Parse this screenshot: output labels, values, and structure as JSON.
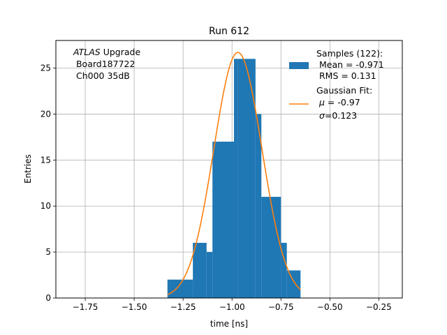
{
  "chart_data": {
    "type": "bar",
    "title": "Run 612",
    "xlabel": "time [ns]",
    "ylabel": "Entries",
    "xlim": [
      -1.9,
      -0.13
    ],
    "ylim": [
      0,
      28
    ],
    "grid": true,
    "xticks": [
      {
        "value": -1.75,
        "label": "−1.75"
      },
      {
        "value": -1.5,
        "label": "−1.50"
      },
      {
        "value": -1.25,
        "label": "−1.25"
      },
      {
        "value": -1.0,
        "label": "−1.00"
      },
      {
        "value": -0.75,
        "label": "−0.75"
      },
      {
        "value": -0.5,
        "label": "−0.50"
      },
      {
        "value": -0.25,
        "label": "−0.25"
      }
    ],
    "yticks": [
      0,
      5,
      10,
      15,
      20,
      25
    ],
    "histogram": {
      "color": "#1f77b4",
      "bin_edges": [
        -1.33,
        -1.2,
        -1.13,
        -1.1,
        -0.99,
        -0.97,
        -0.88,
        -0.85,
        -0.75,
        -0.72,
        -0.65
      ],
      "counts": [
        2,
        6,
        5,
        17,
        26,
        26,
        20,
        11,
        6,
        3
      ]
    },
    "fit": {
      "color": "#ff7f0e",
      "amplitude": 26.7,
      "mu": -0.97,
      "sigma": 0.123,
      "x_range": [
        -1.33,
        -0.65
      ]
    },
    "annotation": {
      "italic": "ATLAS",
      "rest": " Upgrade",
      "line2": " Board187722",
      "line3": " Ch000 35dB"
    },
    "legend": {
      "placement": "top-right",
      "samples": [
        "Samples (122):",
        " Mean = -0.971",
        " RMS = 0.131"
      ],
      "fit_title": "Gaussian Fit:",
      "fit_mu_sym": "μ",
      "fit_mu_val": " = -0.97",
      "fit_sigma_sym": "σ",
      "fit_sigma_val": "=0.123"
    }
  }
}
